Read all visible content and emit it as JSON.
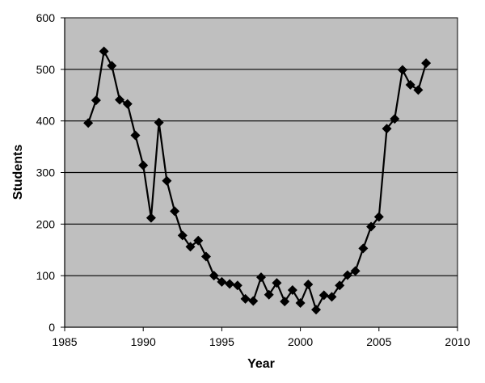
{
  "chart_data": {
    "type": "line",
    "xlabel": "Year",
    "ylabel": "Students",
    "xlim": [
      1985,
      2010
    ],
    "ylim": [
      0,
      600
    ],
    "x_ticks": [
      1985,
      1990,
      1995,
      2000,
      2005,
      2010
    ],
    "y_ticks": [
      0,
      100,
      200,
      300,
      400,
      500,
      600
    ],
    "grid": "horizontal",
    "legend": "none",
    "colors": {
      "plot_background": "#bfbfbf",
      "series": "#000000",
      "gridline": "#000000"
    },
    "series": [
      {
        "marker": "diamond",
        "x": [
          1986.5,
          1987.0,
          1987.5,
          1988.0,
          1988.5,
          1989.0,
          1989.5,
          1990.0,
          1990.5,
          1991.0,
          1991.5,
          1992.0,
          1992.5,
          1993.0,
          1993.5,
          1994.0,
          1994.5,
          1995.0,
          1995.5,
          1996.0,
          1996.5,
          1997.0,
          1997.5,
          1998.0,
          1998.5,
          1999.0,
          1999.5,
          2000.0,
          2000.5,
          2001.0,
          2001.5,
          2002.0,
          2002.5,
          2003.0,
          2003.5,
          2004.0,
          2004.5,
          2005.0,
          2005.5,
          2006.0,
          2006.5,
          2007.0,
          2007.5,
          2008.0
        ],
        "y": [
          396,
          440,
          535,
          507,
          441,
          433,
          372,
          314,
          212,
          397,
          284,
          225,
          178,
          156,
          168,
          137,
          100,
          88,
          84,
          81,
          55,
          51,
          97,
          63,
          86,
          50,
          72,
          47,
          83,
          34,
          62,
          59,
          81,
          101,
          109,
          153,
          195,
          214,
          385,
          404,
          499,
          470,
          460,
          512
        ]
      }
    ]
  }
}
